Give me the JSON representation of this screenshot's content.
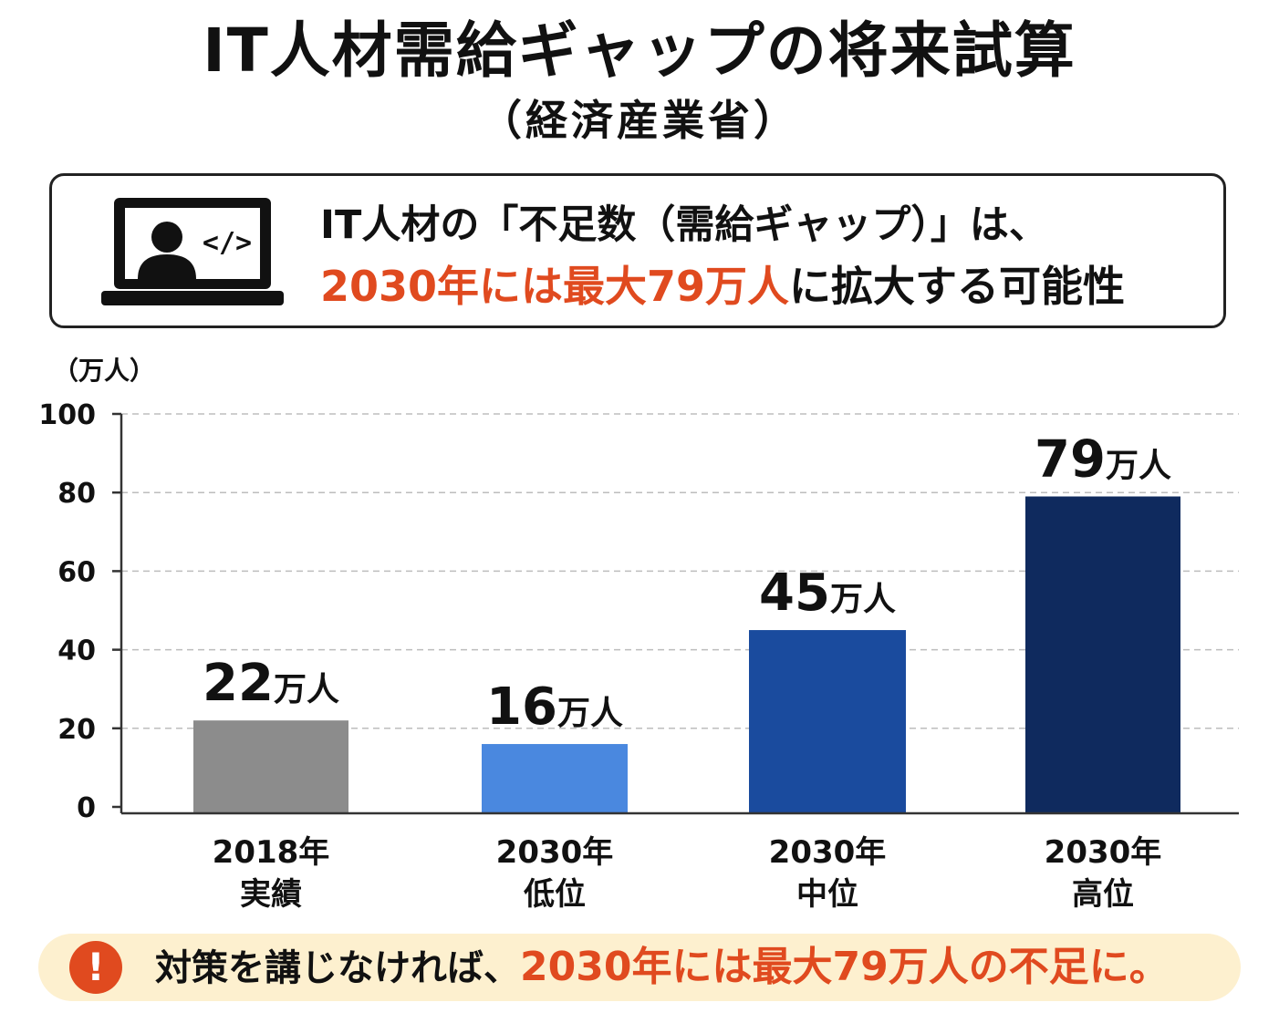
{
  "header": {
    "title": "IT人材需給ギャップの将来試算",
    "subtitle": "（経済産業省）"
  },
  "infobox": {
    "icon": "laptop-code-icon",
    "line1": "IT人材の「不足数（需給ギャップ）」は、",
    "line2_highlight": "2030年には最大79万人",
    "line2_rest": "に拡大する可能性"
  },
  "chart_data": {
    "type": "bar",
    "y_unit_label": "（万人）",
    "ylim": [
      0,
      100
    ],
    "yticks": [
      0,
      20,
      40,
      60,
      80,
      100
    ],
    "grid": true,
    "categories": [
      {
        "line1": "2018年",
        "line2": "実績"
      },
      {
        "line1": "2030年",
        "line2": "低位"
      },
      {
        "line1": "2030年",
        "line2": "中位"
      },
      {
        "line1": "2030年",
        "line2": "高位"
      }
    ],
    "values": [
      22,
      16,
      45,
      79
    ],
    "value_unit": "万人",
    "colors": [
      "#8c8c8c",
      "#4a88df",
      "#1a4b9e",
      "#0f2a5e"
    ]
  },
  "footer": {
    "icon": "exclamation-icon",
    "icon_glyph": "!",
    "text": "対策を講じなければ、",
    "highlight": "2030年には最大79万人の不足に。"
  },
  "colors": {
    "accent": "#e04a1f",
    "footer_bg": "#fdf0cf"
  }
}
